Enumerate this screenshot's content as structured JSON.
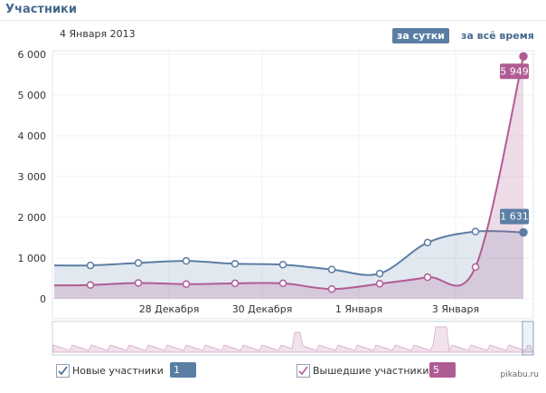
{
  "header": {
    "title": "Участники"
  },
  "date_label": "4 Января 2013",
  "period": {
    "day_label": "за сутки",
    "all_label": "за всё время"
  },
  "legend": {
    "new": {
      "label": "Новые участники",
      "value": "1 631",
      "color": "#5b7ea5"
    },
    "left": {
      "label": "Вышедшие участники",
      "value": "5 949",
      "color": "#b05c94"
    }
  },
  "watermark": "pikabu.ru",
  "chart_data": {
    "type": "area",
    "y_ticks": [
      "0",
      "1 000",
      "2 000",
      "3 000",
      "4 000",
      "5 000",
      "6 000"
    ],
    "ylim": [
      0,
      6000
    ],
    "x_ticks": [
      "28 Декабря",
      "30 Декабря",
      "1 Января",
      "3 Января"
    ],
    "series": [
      {
        "name": "Новые участники",
        "color": "#5b7ea5",
        "values": [
          820,
          820,
          880,
          930,
          860,
          840,
          720,
          620,
          1380,
          1650,
          1631
        ],
        "end_label": "1 631"
      },
      {
        "name": "Вышедшие участники",
        "color": "#b05c94",
        "values": [
          330,
          340,
          390,
          360,
          380,
          380,
          240,
          370,
          530,
          780,
          5949
        ],
        "end_label": "5 949"
      }
    ]
  }
}
